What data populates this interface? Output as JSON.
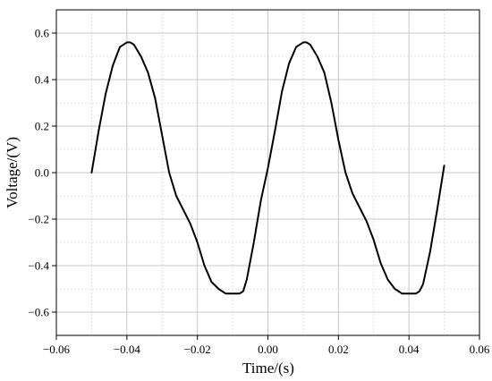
{
  "chart_data": {
    "type": "line",
    "xlabel": "Time/(s)",
    "ylabel": "Voltage/(V)",
    "xlim": [
      -0.06,
      0.06
    ],
    "ylim": [
      -0.7,
      0.7
    ],
    "x_ticks": [
      -0.06,
      -0.04,
      -0.02,
      0.0,
      0.02,
      0.04,
      0.06
    ],
    "x_tick_labels": [
      "−0.06",
      "−0.04",
      "−0.02",
      "0.00",
      "0.02",
      "0.04",
      "0.06"
    ],
    "y_ticks": [
      -0.6,
      -0.4,
      -0.2,
      0.0,
      0.2,
      0.4,
      0.6
    ],
    "y_tick_labels": [
      "−0.6",
      "−0.4",
      "−0.2",
      "0.0",
      "0.2",
      "0.4",
      "0.6"
    ],
    "grid": true,
    "series_color": "#000000",
    "series": [
      {
        "x": [
          -0.05,
          -0.048,
          -0.046,
          -0.044,
          -0.042,
          -0.04,
          -0.039,
          -0.038,
          -0.036,
          -0.034,
          -0.032,
          -0.03,
          -0.028,
          -0.026,
          -0.024,
          -0.022,
          -0.02,
          -0.018,
          -0.016,
          -0.014,
          -0.012,
          -0.01,
          -0.008,
          -0.007,
          -0.006,
          -0.004,
          -0.002,
          0.0,
          0.002,
          0.004,
          0.006,
          0.008,
          0.01,
          0.011,
          0.012,
          0.014,
          0.016,
          0.018,
          0.02,
          0.022,
          0.024,
          0.026,
          0.028,
          0.03,
          0.032,
          0.034,
          0.036,
          0.038,
          0.04,
          0.042,
          0.043,
          0.044,
          0.046,
          0.048,
          0.05
        ],
        "y": [
          0.0,
          0.18,
          0.34,
          0.46,
          0.54,
          0.56,
          0.56,
          0.55,
          0.5,
          0.43,
          0.32,
          0.16,
          0.0,
          -0.1,
          -0.16,
          -0.22,
          -0.3,
          -0.4,
          -0.47,
          -0.5,
          -0.52,
          -0.52,
          -0.52,
          -0.51,
          -0.46,
          -0.3,
          -0.12,
          0.02,
          0.18,
          0.35,
          0.47,
          0.54,
          0.56,
          0.56,
          0.55,
          0.5,
          0.43,
          0.3,
          0.14,
          0.0,
          -0.09,
          -0.15,
          -0.21,
          -0.29,
          -0.39,
          -0.46,
          -0.5,
          -0.52,
          -0.52,
          -0.52,
          -0.51,
          -0.48,
          -0.34,
          -0.16,
          0.03
        ]
      }
    ]
  }
}
